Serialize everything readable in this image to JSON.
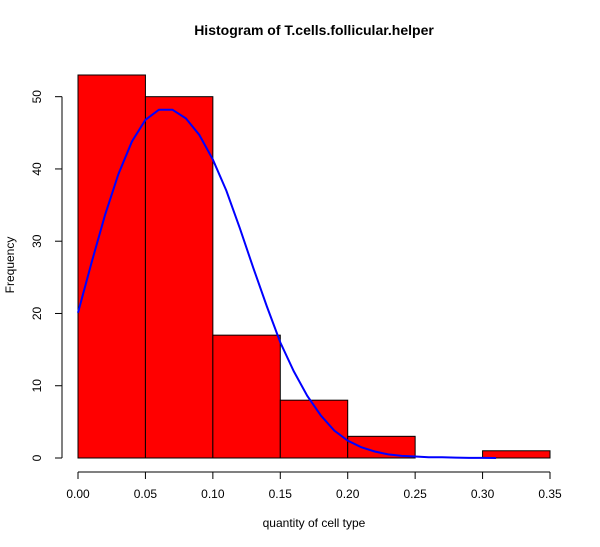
{
  "chart_data": {
    "type": "histogram",
    "title": "Histogram of T.cells.follicular.helper",
    "xlabel": "quantity of cell type",
    "ylabel": "Frequency",
    "xlim": [
      0,
      0.35
    ],
    "ylim": [
      0,
      53
    ],
    "x_ticks": [
      "0.00",
      "0.05",
      "0.10",
      "0.15",
      "0.20",
      "0.25",
      "0.30",
      "0.35"
    ],
    "y_ticks": [
      "0",
      "10",
      "20",
      "30",
      "40",
      "50"
    ],
    "bins": [
      {
        "from": 0.0,
        "to": 0.05,
        "count": 53
      },
      {
        "from": 0.05,
        "to": 0.1,
        "count": 50
      },
      {
        "from": 0.1,
        "to": 0.15,
        "count": 17
      },
      {
        "from": 0.15,
        "to": 0.2,
        "count": 8
      },
      {
        "from": 0.2,
        "to": 0.25,
        "count": 3
      },
      {
        "from": 0.25,
        "to": 0.3,
        "count": 0
      },
      {
        "from": 0.3,
        "to": 0.35,
        "count": 1
      }
    ],
    "bar_color": "#ff0000",
    "bar_border_color": "#000000",
    "density_curve": {
      "color": "#0000ff",
      "points": [
        [
          0.0,
          20.1
        ],
        [
          0.01,
          27.0
        ],
        [
          0.02,
          33.6
        ],
        [
          0.03,
          39.3
        ],
        [
          0.04,
          43.8
        ],
        [
          0.05,
          46.8
        ],
        [
          0.06,
          48.2
        ],
        [
          0.07,
          48.2
        ],
        [
          0.08,
          47.0
        ],
        [
          0.09,
          44.7
        ],
        [
          0.1,
          41.3
        ],
        [
          0.11,
          37.0
        ],
        [
          0.12,
          31.8
        ],
        [
          0.13,
          26.3
        ],
        [
          0.14,
          21.0
        ],
        [
          0.15,
          16.0
        ],
        [
          0.16,
          12.0
        ],
        [
          0.17,
          8.6
        ],
        [
          0.18,
          5.9
        ],
        [
          0.19,
          3.8
        ],
        [
          0.2,
          2.4
        ],
        [
          0.21,
          1.5
        ],
        [
          0.22,
          0.9
        ],
        [
          0.23,
          0.5
        ],
        [
          0.24,
          0.3
        ],
        [
          0.25,
          0.2
        ],
        [
          0.26,
          0.1
        ],
        [
          0.27,
          0.1
        ],
        [
          0.28,
          0.05
        ],
        [
          0.29,
          0.02
        ],
        [
          0.3,
          0.01
        ],
        [
          0.31,
          0.0
        ]
      ]
    }
  }
}
